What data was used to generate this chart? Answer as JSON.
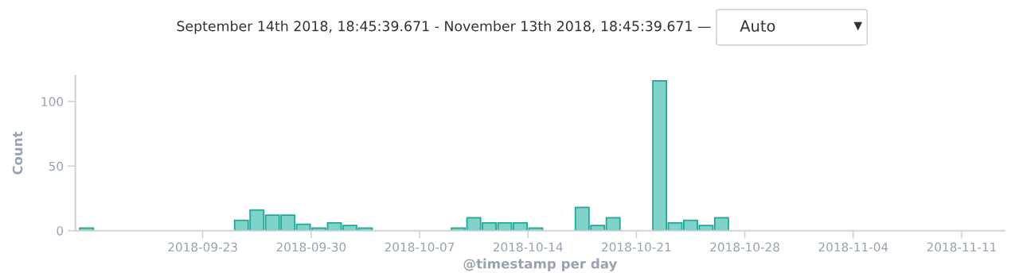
{
  "chart_data": {
    "type": "bar",
    "title": "September 14th 2018, 18:45:39.671 - November 13th 2018, 18:45:39.671 —",
    "annotations": [
      "Auto"
    ],
    "xlabel": "@timestamp per day",
    "ylabel": "Count",
    "x": [
      "2018-09-15T12:00",
      "2018-09-25T12:00",
      "2018-09-26T12:00",
      "2018-09-27T12:00",
      "2018-09-28T12:00",
      "2018-09-29T12:00",
      "2018-09-30T12:00",
      "2018-10-01T12:00",
      "2018-10-02T12:00",
      "2018-10-03T12:00",
      "2018-10-09T12:00",
      "2018-10-10T12:00",
      "2018-10-11T12:00",
      "2018-10-12T12:00",
      "2018-10-13T12:00",
      "2018-10-14T12:00",
      "2018-10-17T12:00",
      "2018-10-18T12:00",
      "2018-10-19T12:00",
      "2018-10-22T12:00",
      "2018-10-23T12:00",
      "2018-10-24T12:00",
      "2018-10-25T12:00",
      "2018-10-26T12:00"
    ],
    "series": [
      {
        "color": "#7fd3c9",
        "values": [
          2,
          8,
          16,
          12,
          12,
          5,
          2,
          6,
          4,
          2,
          2,
          10,
          6,
          6,
          6,
          2,
          18,
          4,
          10,
          116,
          6,
          8,
          4,
          10
        ]
      }
    ],
    "xlim": [
      "2018-09-14T18:45",
      "2018-11-13T18:45"
    ],
    "xticks": [
      "2018-09-23",
      "2018-09-30",
      "2018-10-07",
      "2018-10-14",
      "2018-10-21",
      "2018-10-28",
      "2018-11-04",
      "2018-11-11"
    ],
    "ylim": [
      0,
      120
    ],
    "yticks": [
      0,
      50,
      100
    ],
    "grid": false,
    "legend": false
  }
}
